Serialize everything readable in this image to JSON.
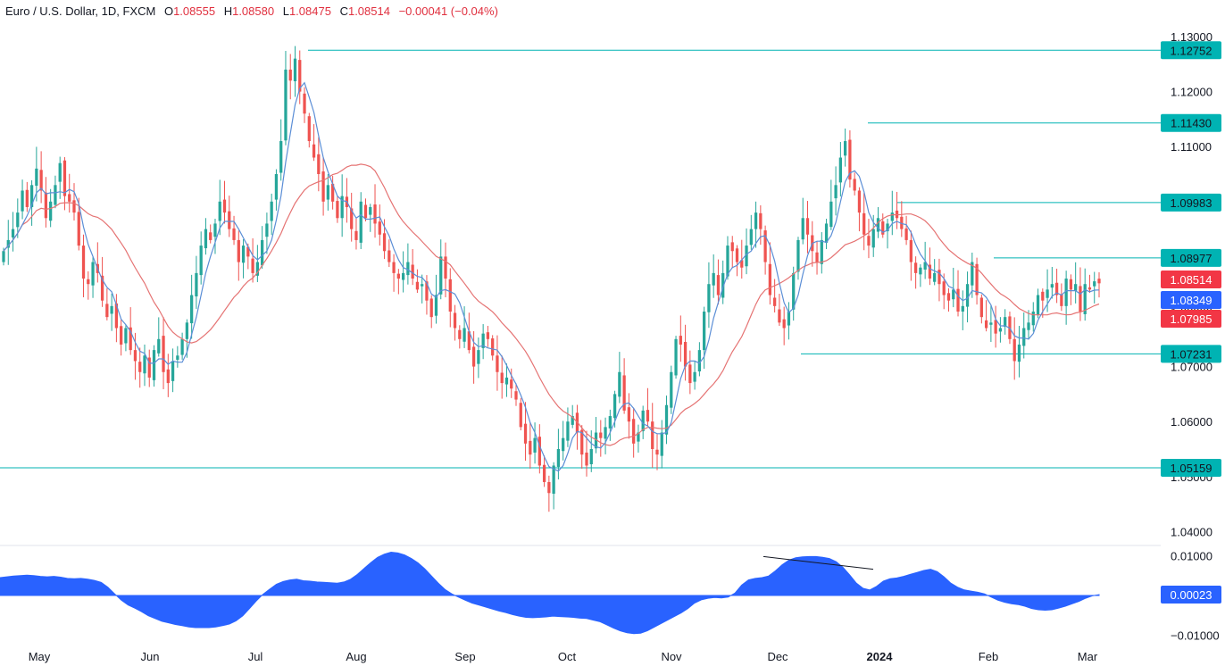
{
  "header": {
    "symbol": "Euro / U.S. Dollar, 1D, FXCM",
    "o_label": "O",
    "o_value": "1.08555",
    "h_label": "H",
    "h_value": "1.08580",
    "l_label": "L",
    "l_value": "1.08475",
    "c_label": "C",
    "c_value": "1.08514",
    "change": "−0.00041 (−0.04%)"
  },
  "colors": {
    "up": "#26a69a",
    "down": "#ef5350",
    "line": "#00b3b3",
    "ma_fast": "#5b8ed6",
    "ma_slow": "#e57373",
    "osc": "#2962ff",
    "last_tag": "#f23645",
    "ma_fast_tag": "#2962ff",
    "ma_slow_tag": "#f23645"
  },
  "chart_data": [
    {
      "type": "candlestick",
      "title": "Euro / U.S. Dollar, 1D, FXCM",
      "x_ticks": [
        "May",
        "Jun",
        "Jul",
        "Aug",
        "Sep",
        "Oct",
        "Nov",
        "Dec",
        "2024",
        "Feb",
        "Mar"
      ],
      "y_ticks": [
        "1.13000",
        "1.12000",
        "1.11000",
        "1.10000",
        "1.09000",
        "1.08000",
        "1.07000",
        "1.06000",
        "1.05000",
        "1.04000"
      ],
      "ylim": [
        1.0375,
        1.132
      ],
      "levels": [
        {
          "value": 1.12752,
          "label": "1.12752"
        },
        {
          "value": 1.1143,
          "label": "1.11430"
        },
        {
          "value": 1.09983,
          "label": "1.09983"
        },
        {
          "value": 1.08977,
          "label": "1.08977"
        },
        {
          "value": 1.07231,
          "label": "1.07231"
        },
        {
          "value": 1.05159,
          "label": "1.05159"
        }
      ],
      "price_tags": [
        {
          "label": "1.08514",
          "kind": "last"
        },
        {
          "label": "1.08349",
          "kind": "ma_fast"
        },
        {
          "label": "1.07985",
          "kind": "ma_slow"
        }
      ],
      "closes": [
        1.091,
        1.093,
        1.095,
        1.098,
        1.102,
        1.099,
        1.103,
        1.106,
        1.102,
        1.097,
        1.1,
        1.103,
        1.107,
        1.101,
        1.1,
        1.098,
        1.092,
        1.086,
        1.085,
        1.089,
        1.087,
        1.082,
        1.079,
        1.081,
        1.077,
        1.074,
        1.077,
        1.073,
        1.071,
        1.069,
        1.072,
        1.068,
        1.073,
        1.075,
        1.069,
        1.067,
        1.071,
        1.072,
        1.075,
        1.078,
        1.083,
        1.087,
        1.092,
        1.095,
        1.093,
        1.096,
        1.1,
        1.098,
        1.095,
        1.093,
        1.089,
        1.092,
        1.09,
        1.087,
        1.089,
        1.093,
        1.096,
        1.1,
        1.105,
        1.111,
        1.124,
        1.122,
        1.126,
        1.12,
        1.116,
        1.111,
        1.108,
        1.105,
        1.1,
        1.103,
        1.1,
        1.097,
        1.101,
        1.099,
        1.095,
        1.093,
        1.1,
        1.097,
        1.099,
        1.096,
        1.094,
        1.091,
        1.089,
        1.087,
        1.086,
        1.087,
        1.089,
        1.086,
        1.084,
        1.085,
        1.082,
        1.079,
        1.083,
        1.09,
        1.086,
        1.08,
        1.077,
        1.075,
        1.077,
        1.073,
        1.07,
        1.073,
        1.076,
        1.075,
        1.072,
        1.069,
        1.067,
        1.068,
        1.066,
        1.064,
        1.059,
        1.056,
        1.054,
        1.057,
        1.052,
        1.049,
        1.047,
        1.052,
        1.055,
        1.057,
        1.06,
        1.061,
        1.058,
        1.054,
        1.052,
        1.055,
        1.058,
        1.057,
        1.059,
        1.061,
        1.065,
        1.069,
        1.062,
        1.06,
        1.056,
        1.058,
        1.062,
        1.06,
        1.055,
        1.054,
        1.058,
        1.063,
        1.069,
        1.075,
        1.074,
        1.07,
        1.067,
        1.069,
        1.073,
        1.08,
        1.085,
        1.087,
        1.083,
        1.087,
        1.092,
        1.091,
        1.089,
        1.088,
        1.092,
        1.095,
        1.098,
        1.095,
        1.089,
        1.083,
        1.081,
        1.078,
        1.077,
        1.08,
        1.087,
        1.093,
        1.097,
        1.094,
        1.091,
        1.089,
        1.093,
        1.096,
        1.1,
        1.103,
        1.108,
        1.111,
        1.104,
        1.102,
        1.098,
        1.094,
        1.092,
        1.095,
        1.097,
        1.094,
        1.096,
        1.098,
        1.097,
        1.095,
        1.093,
        1.089,
        1.087,
        1.088,
        1.089,
        1.086,
        1.087,
        1.085,
        1.083,
        1.082,
        1.084,
        1.08,
        1.081,
        1.085,
        1.089,
        1.083,
        1.079,
        1.077,
        1.078,
        1.076,
        1.077,
        1.079,
        1.075,
        1.071,
        1.074,
        1.077,
        1.078,
        1.08,
        1.083,
        1.082,
        1.084,
        1.085,
        1.083,
        1.081,
        1.086,
        1.084,
        1.085,
        1.08,
        1.085,
        1.084,
        1.0855,
        1.08514
      ],
      "ma_fast_last": 1.08349,
      "ma_slow_last": 1.07985
    },
    {
      "type": "area",
      "title": "",
      "y_ticks": [
        "0.01000",
        "−0.01000"
      ],
      "ylim": [
        -0.0115,
        0.0128
      ],
      "last_value": 0.00023,
      "last_label": "0.00023",
      "annotation": "divergence trendline between two oscillator highs",
      "values": [
        0.0045,
        0.0047,
        0.0049,
        0.005,
        0.0051,
        0.005,
        0.0048,
        0.0047,
        0.0048,
        0.0046,
        0.0043,
        0.0042,
        0.0043,
        0.0041,
        0.0038,
        0.0033,
        0.0021,
        0.0004,
        -0.0012,
        -0.0024,
        -0.0032,
        -0.0041,
        -0.0051,
        -0.0058,
        -0.0065,
        -0.0069,
        -0.0073,
        -0.0076,
        -0.0079,
        -0.0081,
        -0.0081,
        -0.0081,
        -0.0079,
        -0.0076,
        -0.0072,
        -0.0064,
        -0.0051,
        -0.0033,
        -0.0014,
        0.0003,
        0.0016,
        0.0028,
        0.0035,
        0.0039,
        0.0041,
        0.0037,
        0.0036,
        0.0034,
        0.0033,
        0.0032,
        0.0031,
        0.0034,
        0.0041,
        0.0053,
        0.0068,
        0.0083,
        0.0096,
        0.0104,
        0.0109,
        0.0107,
        0.0102,
        0.0093,
        0.0082,
        0.0067,
        0.0049,
        0.0031,
        0.0015,
        0.0004,
        -0.0004,
        -0.0012,
        -0.0019,
        -0.0024,
        -0.0029,
        -0.0034,
        -0.0039,
        -0.0043,
        -0.0048,
        -0.0052,
        -0.0055,
        -0.0056,
        -0.0055,
        -0.0054,
        -0.0052,
        -0.0053,
        -0.0054,
        -0.0055,
        -0.0057,
        -0.0058,
        -0.0062,
        -0.0066,
        -0.0074,
        -0.0082,
        -0.0089,
        -0.0094,
        -0.0096,
        -0.0095,
        -0.0089,
        -0.008,
        -0.0071,
        -0.0062,
        -0.0053,
        -0.0044,
        -0.0033,
        -0.0019,
        -0.0011,
        -0.0007,
        -0.0005,
        -0.0006,
        -0.0004,
        0.0006,
        0.0026,
        0.0039,
        0.0043,
        0.0045,
        0.0049,
        0.0062,
        0.0077,
        0.0089,
        0.0095,
        0.0097,
        0.0098,
        0.0098,
        0.0096,
        0.0093,
        0.0085,
        0.0071,
        0.0052,
        0.0031,
        0.0018,
        0.0014,
        0.0023,
        0.0036,
        0.0042,
        0.0044,
        0.0048,
        0.0053,
        0.0058,
        0.0063,
        0.0066,
        0.006,
        0.0047,
        0.0031,
        0.0021,
        0.0014,
        0.0011,
        0.0008,
        0.0004,
        -0.0004,
        -0.0012,
        -0.0017,
        -0.0021,
        -0.0023,
        -0.0027,
        -0.0033,
        -0.0036,
        -0.0037,
        -0.0036,
        -0.0032,
        -0.0027,
        -0.0021,
        -0.0015,
        -0.0007,
        -0.0001,
        0.0002
      ]
    }
  ]
}
